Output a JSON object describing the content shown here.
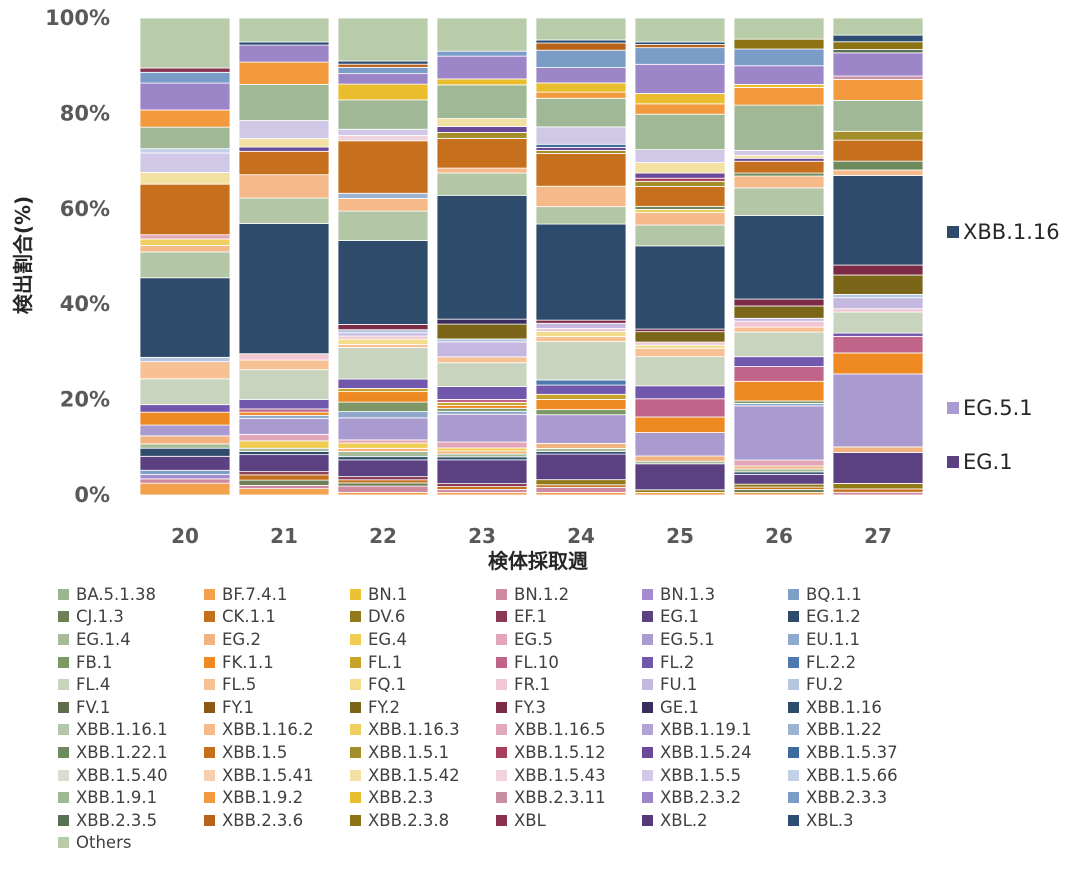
{
  "chart_data": {
    "type": "bar",
    "stacked": true,
    "percent": true,
    "ylabel": "検出割合(%)",
    "xlabel": "検体採取週",
    "ylim": [
      0,
      100
    ],
    "y_ticks": [
      "0%",
      "20%",
      "40%",
      "60%",
      "80%",
      "100%"
    ],
    "categories": [
      "20",
      "21",
      "22",
      "23",
      "24",
      "25",
      "26",
      "27"
    ],
    "legend_position": "bottom",
    "callouts": [
      {
        "label": "XBB.1.16",
        "color": "#2f4b6b",
        "category_index": 7,
        "series": "XBB.1.16"
      },
      {
        "label": "EG.5.1",
        "color": "#a99ad0",
        "category_index": 7,
        "series": "EG.5.1"
      },
      {
        "label": "EG.1",
        "color": "#5c4182",
        "category_index": 7,
        "series": "EG.1"
      }
    ],
    "series": [
      {
        "name": "BA.5.1.38",
        "color": "#9db58f",
        "values": [
          0,
          0,
          0,
          0,
          0,
          0,
          0,
          0
        ]
      },
      {
        "name": "BF.7.4.1",
        "color": "#f3a14c",
        "values": [
          2.2,
          1.2,
          0.5,
          0.5,
          0.5,
          0.5,
          0.5,
          0
        ]
      },
      {
        "name": "BN.1",
        "color": "#ecc235",
        "values": [
          0,
          0,
          0,
          0,
          0,
          0,
          0,
          0
        ]
      },
      {
        "name": "BN.1.2",
        "color": "#cf8aa0",
        "values": [
          0.8,
          0.6,
          1.2,
          0.6,
          1.0,
          0,
          0,
          0.5
        ]
      },
      {
        "name": "BN.1.3",
        "color": "#a68ccf",
        "values": [
          0.8,
          0,
          0,
          0,
          0,
          0,
          0,
          0
        ]
      },
      {
        "name": "BQ.1.1",
        "color": "#7f9fc8",
        "values": [
          0.8,
          0,
          0,
          0,
          0,
          0,
          0,
          0
        ]
      },
      {
        "name": "CJ.1.3",
        "color": "#6c7f56",
        "values": [
          0,
          1.0,
          0.6,
          0,
          0,
          0,
          0.6,
          0
        ]
      },
      {
        "name": "CK.1.1",
        "color": "#c46f1c",
        "values": [
          0,
          1.0,
          0.6,
          0.6,
          0.5,
          0,
          0.5,
          0.6
        ]
      },
      {
        "name": "DV.6",
        "color": "#937a18",
        "values": [
          0,
          0,
          0,
          0,
          1.0,
          0.5,
          0.6,
          1.0
        ]
      },
      {
        "name": "EF.1",
        "color": "#8a3a52",
        "values": [
          0,
          0.6,
          0.6,
          0.6,
          0,
          0,
          0,
          0
        ]
      },
      {
        "name": "EG.1",
        "color": "#5c4182",
        "values": [
          2.6,
          3.2,
          3.2,
          4.8,
          5.0,
          5.0,
          2.0,
          5.6
        ]
      },
      {
        "name": "EG.1.2",
        "color": "#2f4b6b",
        "values": [
          1.5,
          0.6,
          0.6,
          0.6,
          0.5,
          0,
          0.5,
          0
        ]
      },
      {
        "name": "EG.1.4",
        "color": "#a6bc98",
        "values": [
          0.8,
          0.6,
          1.0,
          0.6,
          0.6,
          0.5,
          0.6,
          0
        ]
      },
      {
        "name": "EG.2",
        "color": "#f2b37e",
        "values": [
          1.5,
          0,
          0.6,
          0.6,
          1.0,
          1.0,
          0.6,
          1.0
        ]
      },
      {
        "name": "EG.4",
        "color": "#f0cd52",
        "values": [
          0,
          1.4,
          1.0,
          0.6,
          0,
          0,
          0,
          0
        ]
      },
      {
        "name": "EG.5",
        "color": "#e2a6b8",
        "values": [
          0,
          1.2,
          0.6,
          1.2,
          0,
          0,
          1.2,
          0
        ]
      },
      {
        "name": "EG.5.1",
        "color": "#a99ad0",
        "values": [
          2.0,
          3.0,
          4.2,
          5.6,
          5.6,
          4.5,
          11.0,
          13.2
        ]
      },
      {
        "name": "EU.1.1",
        "color": "#8fa9cc",
        "values": [
          0,
          0.6,
          1.2,
          0.6,
          0,
          0,
          0.5,
          0
        ]
      },
      {
        "name": "FB.1",
        "color": "#7d9866",
        "values": [
          0,
          0,
          1.8,
          0.6,
          1.0,
          0,
          0.5,
          0
        ]
      },
      {
        "name": "FK.1.1",
        "color": "#ef8a23",
        "values": [
          2.4,
          0.6,
          2.0,
          0.6,
          2.0,
          3.0,
          4.0,
          3.8
        ]
      },
      {
        "name": "FL.1",
        "color": "#c9a22a",
        "values": [
          0,
          0,
          0.6,
          0.6,
          1.0,
          0,
          0,
          0
        ]
      },
      {
        "name": "FL.10",
        "color": "#c1648a",
        "values": [
          0,
          0.6,
          0,
          0.6,
          0,
          3.5,
          3.0,
          3.0
        ]
      },
      {
        "name": "FL.2",
        "color": "#7258ac",
        "values": [
          1.4,
          1.8,
          1.8,
          2.6,
          1.8,
          2.5,
          2.0,
          0.6
        ]
      },
      {
        "name": "FL.2.2",
        "color": "#4d79ae",
        "values": [
          0,
          0,
          0,
          0,
          1.0,
          0,
          0,
          0
        ]
      },
      {
        "name": "FL.4",
        "color": "#c9d4bf",
        "values": [
          4.8,
          5.6,
          6.0,
          4.8,
          7.5,
          5.6,
          5.0,
          3.8
        ]
      },
      {
        "name": "FL.5",
        "color": "#f7c193",
        "values": [
          3.2,
          1.8,
          0.6,
          1.2,
          1.0,
          1.6,
          1.0,
          0
        ]
      },
      {
        "name": "FQ.1",
        "color": "#f4dc8d",
        "values": [
          0,
          0,
          1.0,
          0,
          1.0,
          0.6,
          0,
          0
        ]
      },
      {
        "name": "FR.1",
        "color": "#f0c7d2",
        "values": [
          0,
          1.2,
          0.6,
          0,
          0.6,
          0.6,
          1.2,
          0.6
        ]
      },
      {
        "name": "FU.1",
        "color": "#c4b8e0",
        "values": [
          0,
          0,
          0.6,
          3.0,
          1.0,
          0,
          0.6,
          2.0
        ]
      },
      {
        "name": "FU.2",
        "color": "#b4c7df",
        "values": [
          0.8,
          0,
          0.6,
          0.6,
          0,
          0,
          0,
          0.6
        ]
      },
      {
        "name": "FV.1",
        "color": "#5d6e4b",
        "values": [
          0,
          0,
          0,
          0,
          0,
          0,
          0,
          0
        ]
      },
      {
        "name": "FY.1",
        "color": "#8f5715",
        "values": [
          0,
          0,
          0,
          0,
          0,
          0,
          0,
          0
        ]
      },
      {
        "name": "FY.2",
        "color": "#7a6519",
        "values": [
          0,
          0,
          0,
          3.0,
          0,
          2.0,
          2.5,
          3.5
        ]
      },
      {
        "name": "FY.3",
        "color": "#7b2b45",
        "values": [
          0,
          0,
          1.0,
          0,
          0.6,
          0.5,
          1.4,
          1.8
        ]
      },
      {
        "name": "GE.1",
        "color": "#3a2c5e",
        "values": [
          0,
          0,
          0,
          1.0,
          0,
          0,
          0,
          0
        ]
      },
      {
        "name": "XBB.1.16",
        "color": "#2f4b6b",
        "values": [
          14.8,
          24.5,
          16.0,
          25.0,
          18.8,
          16.0,
          17.0,
          16.2
        ]
      },
      {
        "name": "XBB.1.16.1",
        "color": "#b3c7a7",
        "values": [
          4.8,
          4.8,
          5.6,
          4.5,
          3.4,
          4.0,
          5.6,
          0
        ]
      },
      {
        "name": "XBB.1.16.2",
        "color": "#f5b98a",
        "values": [
          1.2,
          4.4,
          2.4,
          1.0,
          4.0,
          2.4,
          2.4,
          1.0
        ]
      },
      {
        "name": "XBB.1.16.3",
        "color": "#efcf60",
        "values": [
          1.2,
          0,
          0,
          0,
          0,
          0.6,
          0,
          0
        ]
      },
      {
        "name": "XBB.1.16.5",
        "color": "#e2a9bd",
        "values": [
          0.8,
          0,
          0,
          0,
          0,
          0,
          0,
          0
        ]
      },
      {
        "name": "XBB.1.19.1",
        "color": "#b1a3d6",
        "values": [
          0,
          0,
          0,
          0,
          0,
          0,
          0,
          0
        ]
      },
      {
        "name": "XBB.1.22",
        "color": "#9cb3d1",
        "values": [
          0,
          0,
          1.0,
          0,
          0,
          0,
          0,
          0
        ]
      },
      {
        "name": "XBB.1.22.1",
        "color": "#6d8a5c",
        "values": [
          0,
          0,
          0,
          0,
          0,
          0.6,
          0.6,
          1.6
        ]
      },
      {
        "name": "XBB.1.5",
        "color": "#c6701d",
        "values": [
          9.4,
          4.4,
          10.0,
          6.0,
          6.4,
          3.8,
          2.4,
          3.8
        ]
      },
      {
        "name": "XBB.1.5.1",
        "color": "#a48e2a",
        "values": [
          0,
          0,
          0,
          1.2,
          0.6,
          1.0,
          0,
          1.6
        ]
      },
      {
        "name": "XBB.1.5.12",
        "color": "#a83d5e",
        "values": [
          0,
          0,
          0,
          0,
          0,
          0.6,
          0,
          0
        ]
      },
      {
        "name": "XBB.1.5.24",
        "color": "#6b4b99",
        "values": [
          0,
          0.8,
          0,
          1.2,
          0.6,
          1.0,
          0.6,
          0
        ]
      },
      {
        "name": "XBB.1.5.37",
        "color": "#3f6b9c",
        "values": [
          0,
          0,
          0,
          0,
          0.6,
          0,
          0,
          0
        ]
      },
      {
        "name": "XBB.1.5.40",
        "color": "#d6dfcf",
        "values": [
          0,
          0,
          0,
          0,
          0,
          0,
          0,
          0
        ]
      },
      {
        "name": "XBB.1.5.41",
        "color": "#f8cfae",
        "values": [
          0,
          0,
          0,
          0,
          0,
          0,
          0,
          0
        ]
      },
      {
        "name": "XBB.1.5.42",
        "color": "#f3e0a3",
        "values": [
          2.2,
          1.6,
          0,
          1.6,
          0,
          2.0,
          0.6,
          0
        ]
      },
      {
        "name": "XBB.1.5.43",
        "color": "#f1d3dc",
        "values": [
          0,
          0,
          1.0,
          0,
          0,
          0,
          0,
          0
        ]
      },
      {
        "name": "XBB.1.5.5",
        "color": "#d0c8e6",
        "values": [
          3.6,
          3.4,
          1.2,
          0,
          3.4,
          2.5,
          1.0,
          0
        ]
      },
      {
        "name": "XBB.1.5.66",
        "color": "#c2d1e6",
        "values": [
          0.8,
          0,
          0,
          0,
          0,
          0,
          0,
          0
        ]
      },
      {
        "name": "XBB.1.9.1",
        "color": "#a0b895",
        "values": [
          4.0,
          6.8,
          5.6,
          6.8,
          5.6,
          6.8,
          9.2,
          5.6
        ]
      },
      {
        "name": "XBB.1.9.2",
        "color": "#f39a3f",
        "values": [
          3.2,
          4.2,
          0,
          0,
          1.2,
          2.0,
          3.6,
          3.8
        ]
      },
      {
        "name": "XBB.2.3",
        "color": "#e9bd2d",
        "values": [
          0,
          0,
          3.0,
          1.2,
          1.8,
          2.0,
          0.6,
          0
        ]
      },
      {
        "name": "XBB.2.3.11",
        "color": "#c88ea2",
        "values": [
          0,
          0,
          0,
          0,
          0,
          0,
          0,
          0.6
        ]
      },
      {
        "name": "XBB.2.3.2",
        "color": "#9d86c8",
        "values": [
          5.0,
          3.2,
          2.0,
          4.6,
          3.0,
          5.6,
          3.8,
          4.2
        ]
      },
      {
        "name": "XBB.2.3.3",
        "color": "#7b9cc6",
        "values": [
          2.0,
          0,
          1.2,
          1.0,
          3.4,
          3.2,
          3.4,
          0
        ]
      },
      {
        "name": "XBB.2.3.5",
        "color": "#5a7052",
        "values": [
          0,
          0,
          0,
          0,
          0,
          0,
          0,
          0.6
        ]
      },
      {
        "name": "XBB.2.3.6",
        "color": "#b8621a",
        "values": [
          0,
          0,
          0.6,
          0,
          1.4,
          0.6,
          0,
          0
        ]
      },
      {
        "name": "XBB.2.3.8",
        "color": "#8d7314",
        "values": [
          0,
          0,
          0,
          0,
          0,
          0,
          2.0,
          1.4
        ]
      },
      {
        "name": "XBL",
        "color": "#8a3150",
        "values": [
          0.8,
          0,
          0,
          0,
          0,
          0,
          0,
          0
        ]
      },
      {
        "name": "XBL.2",
        "color": "#55397b",
        "values": [
          0,
          0,
          0,
          0,
          0,
          0,
          0,
          0
        ]
      },
      {
        "name": "XBL.3",
        "color": "#2e4d72",
        "values": [
          0,
          0.6,
          0.6,
          0,
          0.6,
          0.5,
          0,
          1.2
        ]
      },
      {
        "name": "Others",
        "color": "#b9ccaa",
        "values": [
          9.3,
          4.5,
          8.2,
          6.7,
          4.3,
          4.6,
          4.3,
          3.1
        ]
      }
    ]
  }
}
